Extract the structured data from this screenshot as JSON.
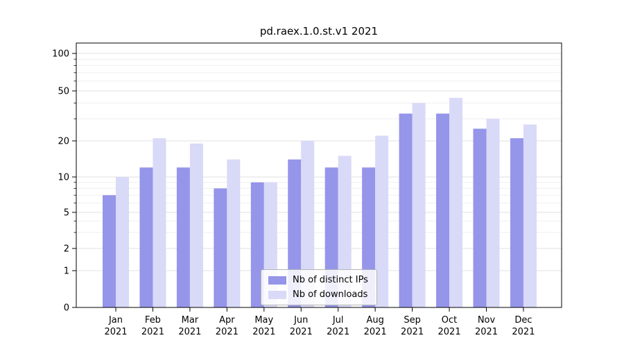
{
  "title": "pd.raex.1.0.st.v1 2021",
  "chart_data": {
    "type": "bar",
    "scale": "symlog",
    "title": "pd.raex.1.0.st.v1 2021",
    "categories": [
      "Jan",
      "Feb",
      "Mar",
      "Apr",
      "May",
      "Jun",
      "Jul",
      "Aug",
      "Sep",
      "Oct",
      "Nov",
      "Dec"
    ],
    "year": "2021",
    "series": [
      {
        "name": "Nb of distinct IPs",
        "color": "#9595ea",
        "values": [
          7,
          12,
          12,
          8,
          9,
          14,
          12,
          12,
          33,
          33,
          25,
          21
        ]
      },
      {
        "name": "Nb of downloads",
        "color": "#d9d9f8",
        "values": [
          10,
          21,
          19,
          14,
          9,
          20,
          15,
          22,
          40,
          44,
          30,
          27
        ]
      }
    ],
    "yticks": [
      0,
      1,
      2,
      5,
      10,
      20,
      50,
      100
    ],
    "minor_yticks": [
      3,
      4,
      6,
      7,
      8,
      9,
      30,
      40,
      60,
      70,
      80,
      90
    ],
    "ylim": [
      0,
      120
    ],
    "grid": true,
    "legend_position": "lower center"
  }
}
